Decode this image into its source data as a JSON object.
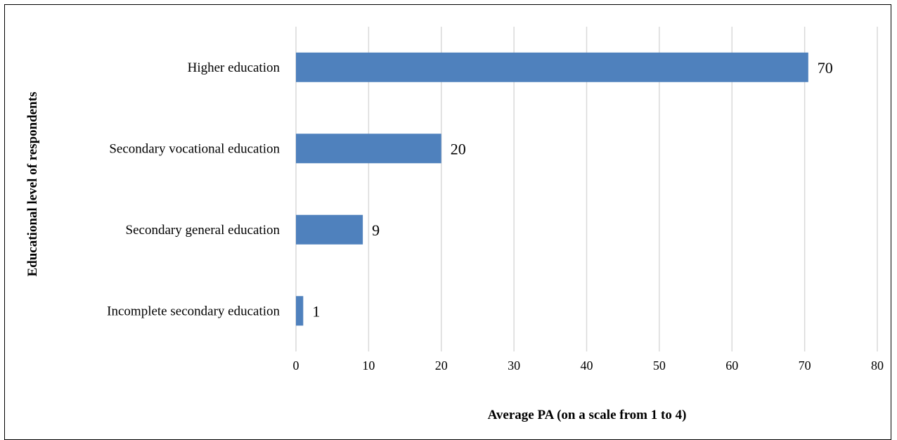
{
  "chart_data": {
    "type": "bar",
    "orientation": "horizontal",
    "categories": [
      "Higher education",
      "Secondary vocational education",
      "Secondary general education",
      "Incomplete secondary education"
    ],
    "values": [
      70.5,
      20,
      9.2,
      1
    ],
    "data_labels": [
      "70",
      "20",
      "9",
      "1"
    ],
    "xlabel": "Average PA (on a scale from 1 to 4)",
    "ylabel": "Educational level of respondents",
    "xlim": [
      0,
      80
    ],
    "xticks": [
      "0",
      "10",
      "20",
      "30",
      "40",
      "50",
      "60",
      "70",
      "80"
    ],
    "grid": true,
    "legend": "none",
    "bar_color": "#4f81bd",
    "grid_color": "#d9d9d9"
  }
}
